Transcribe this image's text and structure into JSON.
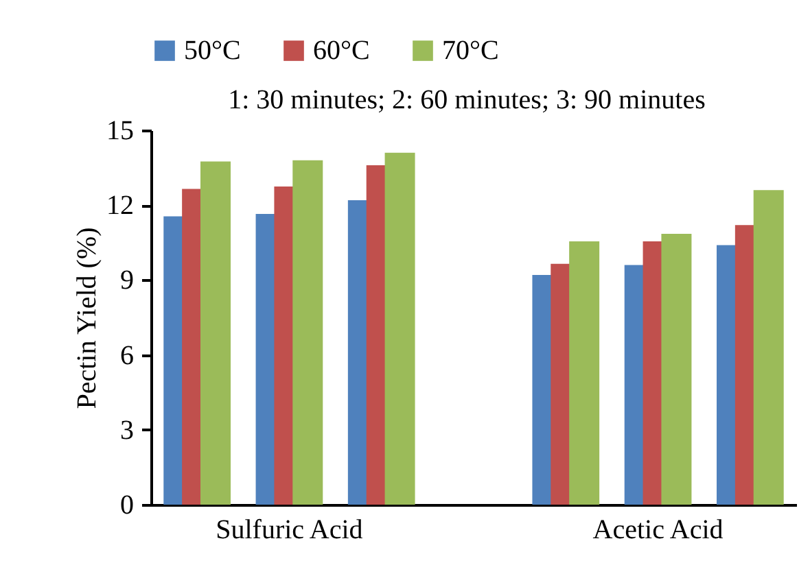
{
  "chart_data": {
    "type": "bar",
    "ylabel": "Pectin Yield (%)",
    "categories": [
      null,
      "Sulfuric Acid",
      null,
      null,
      null,
      "Acetic Acid",
      null
    ],
    "series": [
      {
        "name": "50°C",
        "color": "#4f81bd",
        "values": [
          11.55,
          11.65,
          12.2,
          null,
          9.2,
          9.6,
          10.4
        ]
      },
      {
        "name": "60°C",
        "color": "#c0504d",
        "values": [
          12.65,
          12.75,
          13.6,
          null,
          9.65,
          10.55,
          11.2
        ]
      },
      {
        "name": "70°C",
        "color": "#9bbb59",
        "values": [
          13.75,
          13.8,
          14.1,
          null,
          10.55,
          10.85,
          12.6
        ]
      }
    ],
    "annotations": [
      "1: 30 minutes; 2: 60 minutes; 3: 90 minutes"
    ],
    "ylim": [
      0,
      15
    ],
    "yticks": [
      0,
      3,
      6,
      9,
      12,
      15
    ],
    "grid": false,
    "legend": "top"
  }
}
